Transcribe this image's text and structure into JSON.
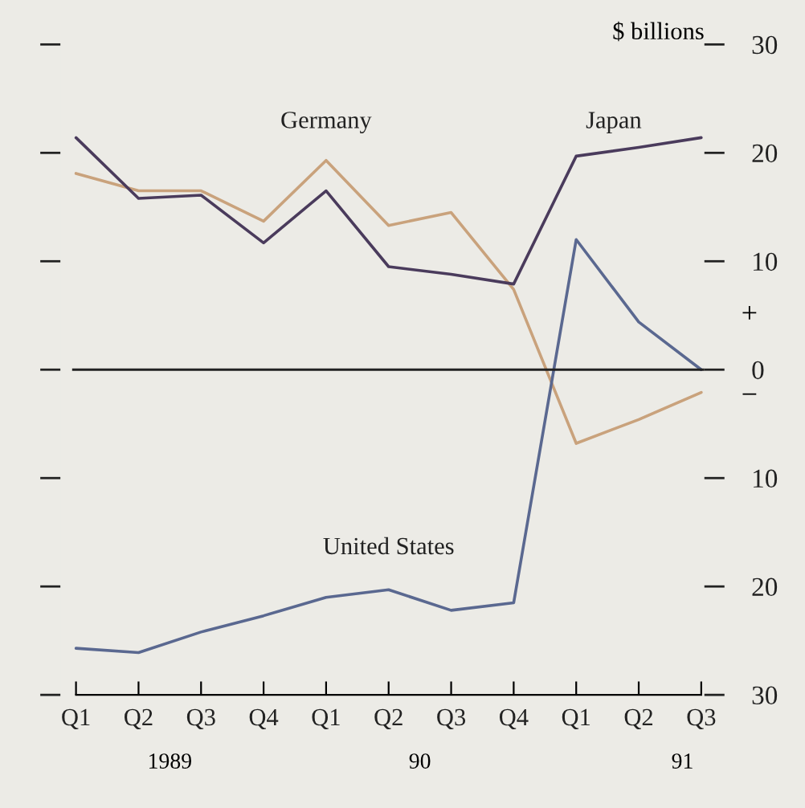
{
  "chart_data": {
    "type": "line",
    "ylabel": "$ billions",
    "categories": [
      "Q1",
      "Q2",
      "Q3",
      "Q4",
      "Q1",
      "Q2",
      "Q3",
      "Q4",
      "Q1",
      "Q2",
      "Q3"
    ],
    "series": [
      {
        "name": "Germany",
        "color": "#c9a27c",
        "values": [
          18.1,
          16.5,
          16.5,
          13.7,
          19.3,
          13.3,
          14.5,
          7.4,
          -6.8,
          -4.6,
          -2.1
        ]
      },
      {
        "name": "Japan",
        "color": "#4a3b5c",
        "values": [
          21.4,
          15.8,
          16.1,
          11.7,
          16.5,
          9.5,
          8.8,
          7.9,
          19.7,
          20.5,
          21.4
        ]
      },
      {
        "name": "United States",
        "color": "#5a6890",
        "values": [
          -25.7,
          -26.1,
          -24.2,
          -22.7,
          -21.0,
          -20.3,
          -22.2,
          -21.5,
          12.0,
          4.4,
          0
        ]
      }
    ],
    "ylim": [
      -30,
      30
    ],
    "yticks": [
      {
        "value": -30,
        "label": "30"
      },
      {
        "value": -20,
        "label": "20"
      },
      {
        "value": -10,
        "label": "10"
      },
      0,
      10,
      20,
      30
    ],
    "ref_lines": [
      {
        "axis": "y",
        "value": 0,
        "color": "#222222"
      }
    ],
    "annotations": [
      "+",
      "−",
      "1989",
      "90",
      "91"
    ],
    "grid": false,
    "legend": false,
    "marker": "none",
    "line_style": "solid"
  }
}
